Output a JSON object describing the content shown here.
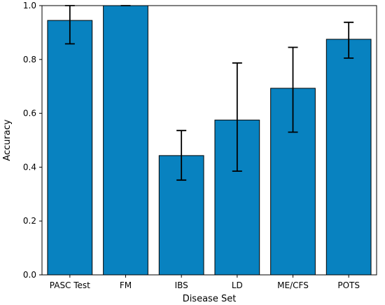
{
  "chart_data": {
    "type": "bar",
    "title": "",
    "xlabel": "Disease Set",
    "ylabel": "Accuracy",
    "ylim": [
      0,
      1.0
    ],
    "yticks": [
      "0.0",
      "0.2",
      "0.4",
      "0.6",
      "0.8",
      "1.0"
    ],
    "categories": [
      "PASC Test",
      "FM",
      "IBS",
      "LD",
      "ME/CFS",
      "POTS"
    ],
    "series": [
      {
        "values": [
          0.945,
          1.0,
          0.443,
          0.575,
          0.693,
          0.875
        ],
        "error_low": [
          0.858,
          1.0,
          0.352,
          0.385,
          0.53,
          0.805
        ],
        "error_high": [
          1.0,
          1.0,
          0.536,
          0.787,
          0.845,
          0.938
        ]
      }
    ],
    "bar_color": "#0882c0",
    "grid": false,
    "legend": "none"
  }
}
